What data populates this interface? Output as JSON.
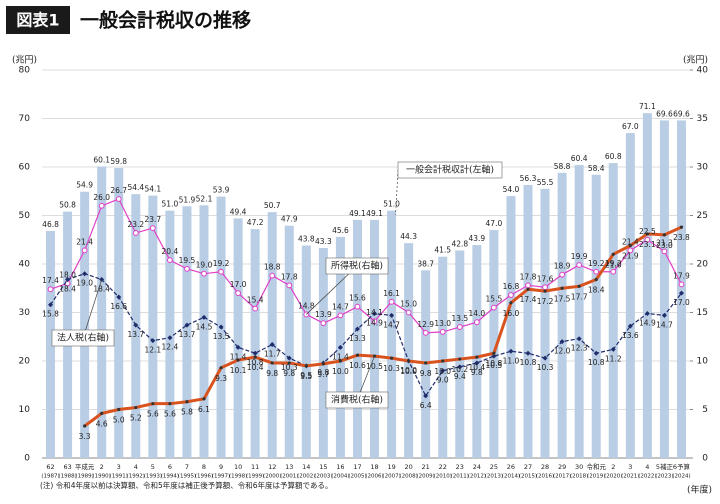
{
  "chart_data": {
    "type": "bar_line",
    "figure_label": "図表1",
    "title": "一般会計税収の推移",
    "ylabel": "(兆円)",
    "y2label": "(兆円)",
    "xlabel": "(年度)",
    "note": "(注) 令和4年度以前は決算額、令和5年度は補正後予算額、令和6年度は予算額である。",
    "categories": [
      "62",
      "63",
      "平成元",
      "2",
      "3",
      "4",
      "5",
      "6",
      "7",
      "8",
      "9",
      "10",
      "11",
      "12",
      "13",
      "14",
      "15",
      "16",
      "17",
      "18",
      "19",
      "20",
      "21",
      "22",
      "23",
      "24",
      "25",
      "26",
      "27",
      "28",
      "29",
      "30",
      "令和元",
      "2",
      "3",
      "4",
      "5補正",
      "6予算"
    ],
    "category_years": [
      "(1987)",
      "(1988)",
      "(1989)",
      "(1990)",
      "(1991)",
      "(1992)",
      "(1993)",
      "(1994)",
      "(1995)",
      "(1996)",
      "(1997)",
      "(1998)",
      "(1999)",
      "(2000)",
      "(2001)",
      "(2002)",
      "(2003)",
      "(2004)",
      "(2005)",
      "(2006)",
      "(2007)",
      "(2008)",
      "(2009)",
      "(2010)",
      "(2011)",
      "(2012)",
      "(2013)",
      "(2014)",
      "(2015)",
      "(2016)",
      "(2017)",
      "(2018)",
      "(2019)",
      "(2020)",
      "(2021)",
      "(2022)",
      "(2023)",
      "(2024)"
    ],
    "ylim": [
      0,
      80
    ],
    "yticks": [
      0,
      10,
      20,
      30,
      40,
      50,
      60,
      70,
      80
    ],
    "y2lim": [
      0,
      40
    ],
    "y2ticks": [
      0,
      5,
      10,
      15,
      20,
      25,
      30,
      35,
      40
    ],
    "grid": true,
    "series": [
      {
        "name": "一般会計税収計(左軸)",
        "type": "bar",
        "color": "#b9cde5",
        "values": [
          46.8,
          50.8,
          54.9,
          60.1,
          59.8,
          54.4,
          54.1,
          51.0,
          51.9,
          52.1,
          53.9,
          49.4,
          47.2,
          50.7,
          47.9,
          43.8,
          43.3,
          45.6,
          49.1,
          49.1,
          51.0,
          44.3,
          38.7,
          41.5,
          42.8,
          43.9,
          47.0,
          54.0,
          56.3,
          55.5,
          58.8,
          60.4,
          58.4,
          60.8,
          67.0,
          71.1,
          69.6,
          69.6
        ],
        "value_labels": [
          "46.8",
          "50.8",
          "54.9",
          "60.1",
          "59.8",
          "54.4",
          "54.1",
          "51.0",
          "51.9",
          "52.1",
          "53.9",
          "49.4",
          "47.2",
          "50.7",
          "47.9",
          "43.8",
          "43.3",
          "45.6",
          "49.1",
          "49.1",
          "51.0",
          "44.3",
          "38.7",
          "41.5",
          "42.8",
          "43.9",
          "47.0",
          "54.0",
          "56.3",
          "55.5",
          "58.8",
          "60.4",
          "58.4",
          "60.8",
          "67.0",
          "71.1",
          "69.6",
          "69.6"
        ]
      },
      {
        "name": "所得税(右軸)",
        "type": "line",
        "axis": "y2",
        "color": "#e040c8",
        "marker": "circle",
        "values": [
          17.4,
          18.0,
          21.4,
          26.0,
          26.7,
          23.2,
          23.7,
          20.4,
          19.5,
          19.0,
          19.2,
          17.0,
          15.4,
          18.8,
          17.8,
          14.8,
          13.9,
          14.7,
          15.6,
          14.1,
          16.1,
          15.0,
          12.9,
          13.0,
          13.5,
          14.0,
          15.5,
          16.8,
          17.8,
          17.6,
          18.9,
          19.9,
          19.2,
          19.2,
          21.4,
          22.5,
          21.3,
          17.9
        ],
        "value_labels": [
          "17.4",
          "18.0",
          "21.4",
          "26.0",
          "26.7",
          "23.2",
          "23.7",
          "20.4",
          "19.5",
          "19.0",
          "19.2",
          "17.0",
          "15.4",
          "18.8",
          "17.8",
          "14.8",
          "13.9",
          "14.7",
          "15.6",
          "14.1",
          "16.1",
          "15.0",
          "12.9",
          "13.0",
          "13.5",
          "14.0",
          "15.5",
          "16.8",
          "17.8",
          "17.6",
          "18.9",
          "19.9",
          "19.2",
          "19.2",
          "21.4",
          "22.5",
          "21.3",
          "17.9"
        ]
      },
      {
        "name": "法人税(右軸)",
        "type": "line",
        "axis": "y2",
        "color": "#1f2d6b",
        "marker": "diamond",
        "dashed": true,
        "values": [
          15.8,
          18.4,
          19.0,
          18.4,
          16.6,
          13.7,
          12.1,
          12.4,
          13.7,
          14.5,
          13.5,
          11.4,
          10.8,
          11.7,
          10.3,
          9.5,
          9.8,
          11.4,
          13.3,
          14.9,
          14.7,
          10.0,
          6.4,
          9.0,
          9.4,
          9.8,
          10.5,
          11.0,
          10.8,
          10.3,
          12.0,
          12.3,
          10.8,
          11.2,
          13.6,
          14.9,
          14.7,
          17.0
        ],
        "value_labels": [
          "15.8",
          "18.4",
          "19.0",
          "18.4",
          "16.6",
          "13.7",
          "12.1",
          "12.4",
          "13.7",
          "14.5",
          "13.5",
          "11.4",
          "10.8",
          "11.7",
          "10.3",
          "9.5",
          "9.8",
          "11.4",
          "13.3",
          "14.9",
          "14.7",
          "10.0",
          "6.4",
          "9.0",
          "9.4",
          "9.8",
          "10.5",
          "11.0",
          "10.8",
          "10.3",
          "12.0",
          "12.3",
          "10.8",
          "11.2",
          "13.6",
          "14.9",
          "14.7",
          "17.0"
        ]
      },
      {
        "name": "消費税(右軸)",
        "type": "line",
        "axis": "y2",
        "color": "#d9531e",
        "marker": "dot",
        "thick": true,
        "values": [
          null,
          null,
          3.3,
          4.6,
          5.0,
          5.2,
          5.6,
          5.6,
          5.8,
          6.1,
          9.3,
          10.1,
          10.4,
          9.8,
          9.8,
          9.5,
          9.7,
          10.0,
          10.6,
          10.5,
          10.3,
          10.0,
          9.8,
          10.0,
          10.2,
          10.4,
          10.8,
          16.0,
          17.4,
          17.2,
          17.5,
          17.7,
          18.4,
          21.0,
          21.9,
          23.1,
          23.0,
          23.8
        ],
        "value_labels": [
          null,
          null,
          "3.3",
          "4.6",
          "5.0",
          "5.2",
          "5.6",
          "5.6",
          "5.8",
          "6.1",
          "9.3",
          "10.1",
          "10.4",
          "9.8",
          "9.8",
          "9.5",
          "9.7",
          "10.0",
          "10.6",
          "10.5",
          "10.3",
          "10.0",
          "9.8",
          "10.0",
          "10.2",
          "10.4",
          "10.8",
          "16.0",
          "17.4",
          "17.2",
          "17.5",
          "17.7",
          "18.4",
          "21.0",
          "21.9",
          "23.1",
          "23.0",
          "23.8"
        ]
      }
    ]
  }
}
